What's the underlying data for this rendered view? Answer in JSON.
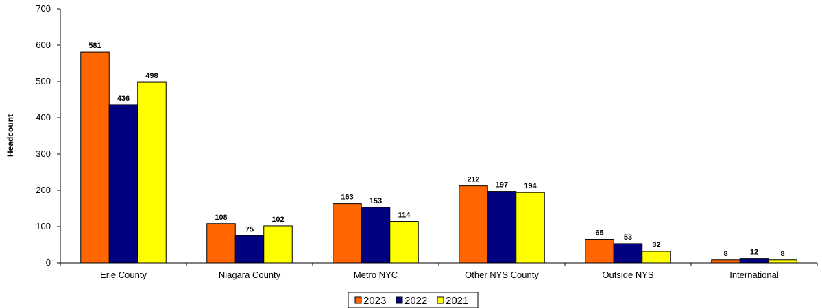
{
  "chart_data": {
    "type": "bar",
    "title": "",
    "xlabel": "",
    "ylabel": "Headcount",
    "ylim": [
      0,
      700
    ],
    "yticks": [
      0,
      100,
      200,
      300,
      400,
      500,
      600,
      700
    ],
    "grid": false,
    "legend_position": "bottom",
    "categories": [
      "Erie County",
      "Niagara County",
      "Metro NYC",
      "Other NYS County",
      "Outside NYS",
      "International"
    ],
    "series": [
      {
        "name": "2023",
        "color": "#FF6600",
        "values": [
          581,
          108,
          163,
          212,
          65,
          8
        ]
      },
      {
        "name": "2022",
        "color": "#000080",
        "values": [
          436,
          75,
          153,
          197,
          53,
          12
        ]
      },
      {
        "name": "2021",
        "color": "#FFFF00",
        "values": [
          498,
          102,
          114,
          194,
          32,
          8
        ]
      }
    ]
  }
}
